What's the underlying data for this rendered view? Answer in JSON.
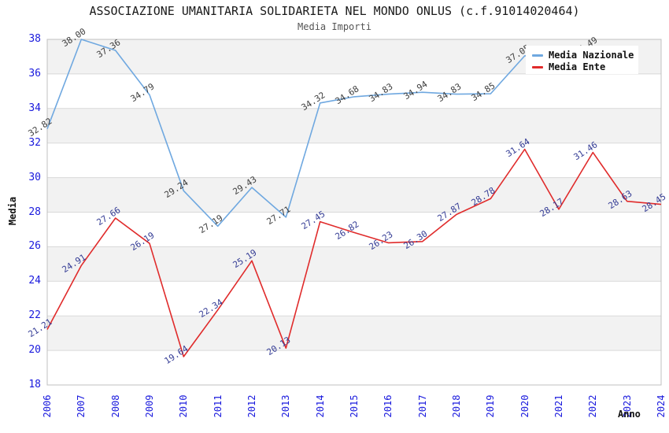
{
  "chart_data": {
    "type": "line",
    "title": "ASSOCIAZIONE UMANITARIA SOLIDARIETA NEL MONDO ONLUS (c.f.91014020464)",
    "subtitle": "Media Importi",
    "xlabel": "Anno",
    "ylabel": "Media",
    "ylim": [
      18,
      38
    ],
    "ytick_step": 2,
    "grid": "horizontal-gridlines-with-alternating-bands",
    "band_colors": {
      "even": "#ffffff",
      "odd": "#f2f2f2"
    },
    "gridline_color": "#d9d9d9",
    "border_color": "#c0c0c0",
    "axis_tick_color": "#1919dd",
    "title_color": "#1a1a1a",
    "subtitle_color": "#555555",
    "legend_position": "top-right",
    "categories": [
      "2006",
      "2007",
      "2008",
      "2009",
      "2010",
      "2011",
      "2012",
      "2013",
      "2014",
      "2015",
      "2016",
      "2017",
      "2018",
      "2019",
      "2020",
      "2021",
      "2022",
      "2023",
      "2024"
    ],
    "series": [
      {
        "name": "Media Nazionale",
        "color": "#6fa8e0",
        "label_color": "#3d3d3d",
        "values": [
          32.82,
          38.0,
          37.36,
          34.79,
          29.24,
          27.19,
          29.43,
          27.71,
          34.32,
          34.68,
          34.83,
          34.94,
          34.83,
          34.85,
          37.05,
          37.2,
          37.49,
          null,
          null
        ],
        "labels": [
          "32.82",
          "38.00",
          "37.36",
          "34.79",
          "29.24",
          "27.19",
          "29.43",
          "27.71",
          "34.32",
          "34.68",
          "34.83",
          "34.94",
          "34.83",
          "34.85",
          "37.05",
          null,
          "37.49",
          null,
          null
        ]
      },
      {
        "name": "Media Ente",
        "color": "#e02b2b",
        "label_color": "#323a94",
        "values": [
          21.21,
          24.91,
          27.66,
          26.19,
          19.64,
          22.34,
          25.19,
          20.13,
          27.45,
          26.82,
          26.23,
          26.3,
          27.87,
          28.78,
          31.64,
          28.17,
          31.46,
          28.63,
          28.45
        ],
        "labels": [
          "21.21",
          "24.91",
          "27.66",
          "26.19",
          "19.64",
          "22.34",
          "25.19",
          "20.13",
          "27.45",
          "26.82",
          "26.23",
          "26.30",
          "27.87",
          "28.78",
          "31.64",
          "28.17",
          "31.46",
          "28.63",
          "28.45"
        ]
      }
    ]
  }
}
